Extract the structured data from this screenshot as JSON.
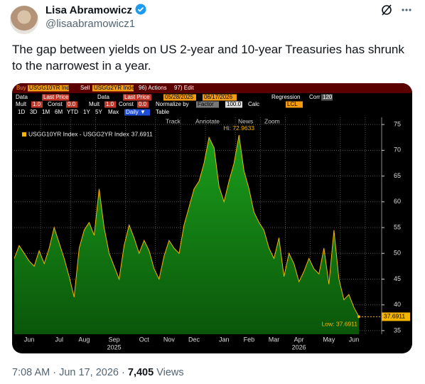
{
  "author": {
    "name": "Lisa Abramowicz",
    "handle": "@lisaabramowicz1"
  },
  "tweet": {
    "text": "The gap between yields on US 2-year and 10-year Treasuries has shrunk to the narrowest in a year."
  },
  "terminal": {
    "row1": [
      "Buy",
      "USGG10YR Ind",
      "Sell",
      "USGG2YR Inde",
      "96) Actions",
      "97) Edit"
    ],
    "row2": [
      "Data",
      "Last Price",
      "Data",
      "Last Price",
      "05/28/2025",
      "06/17/2026",
      "Regression",
      "Corr",
      "120"
    ],
    "row3": [
      "Mult",
      "1.0",
      "Const",
      "0.0",
      "Mult",
      "1.0",
      "Const",
      "0.0",
      "Normalize by",
      "Factor",
      "100.0",
      "Calc",
      "LCL"
    ],
    "row4": [
      "1D",
      "3D",
      "1M",
      "6M",
      "YTD",
      "1Y",
      "5Y",
      "Max",
      "Daily ▼",
      "Table"
    ],
    "tools": [
      "Track",
      "Annotate",
      "News",
      "Zoom"
    ]
  },
  "chart_data": {
    "type": "area",
    "categories": [
      null,
      null,
      null,
      "Jun",
      null,
      null,
      null,
      null,
      null,
      "Jul",
      null,
      null,
      null,
      null,
      "Aug",
      null,
      null,
      null,
      null,
      null,
      "Sep",
      null,
      null,
      null,
      null,
      null,
      "Oct",
      null,
      null,
      null,
      null,
      "Nov",
      null,
      null,
      null,
      null,
      "Dec",
      null,
      null,
      null,
      null,
      null,
      "Jan",
      null,
      null,
      null,
      null,
      "Feb",
      null,
      null,
      null,
      null,
      "Mar",
      null,
      null,
      null,
      null,
      "Apr",
      null,
      null,
      null,
      null,
      null,
      "May",
      null,
      null,
      null,
      null,
      "Jun",
      null
    ],
    "category_years": [
      null,
      null,
      null,
      null,
      null,
      null,
      null,
      null,
      null,
      null,
      null,
      null,
      null,
      null,
      null,
      null,
      null,
      null,
      null,
      null,
      "2025",
      null,
      null,
      null,
      null,
      null,
      null,
      null,
      null,
      null,
      null,
      null,
      null,
      null,
      null,
      null,
      null,
      null,
      null,
      null,
      null,
      null,
      null,
      null,
      null,
      null,
      null,
      null,
      null,
      null,
      null,
      null,
      null,
      null,
      null,
      null,
      null,
      "2026",
      null,
      null,
      null,
      null,
      null,
      null,
      null,
      null,
      null,
      null,
      null,
      null
    ],
    "series": [
      {
        "name": "USGG10YR Index - USGG2YR Index",
        "color": "#f5b400",
        "fill": "#138a13",
        "values": [
          49.0,
          51.5,
          50.0,
          48.5,
          47.5,
          50.5,
          48.0,
          51.0,
          55.0,
          52.0,
          49.0,
          45.5,
          41.5,
          51.0,
          54.5,
          56.0,
          53.5,
          62.5,
          55.0,
          50.0,
          47.5,
          45.0,
          51.5,
          55.5,
          53.0,
          50.0,
          52.5,
          50.5,
          47.0,
          45.0,
          49.5,
          52.5,
          51.0,
          50.0,
          55.5,
          59.0,
          62.5,
          64.0,
          67.5,
          72.5,
          70.5,
          63.0,
          60.0,
          64.0,
          67.5,
          72.9633,
          66.0,
          62.5,
          58.0,
          56.0,
          54.5,
          51.0,
          49.0,
          53.0,
          45.5,
          50.0,
          48.0,
          44.5,
          46.5,
          49.0,
          47.0,
          46.0,
          51.0,
          44.0,
          54.5,
          45.0,
          41.0,
          42.0,
          39.5,
          37.6911
        ]
      }
    ],
    "ylim": [
      34.3,
      76.4
    ],
    "yticks": [
      35,
      40,
      45,
      50,
      55,
      60,
      65,
      70,
      75
    ],
    "grid": true,
    "annotations": [
      "Hi: 72.9633",
      "Low: 37.6911"
    ]
  },
  "footer": {
    "time": "7:08 AM",
    "separator": "·",
    "date": "Jun 17, 2026",
    "views": "7,405",
    "views_label": "Views"
  }
}
